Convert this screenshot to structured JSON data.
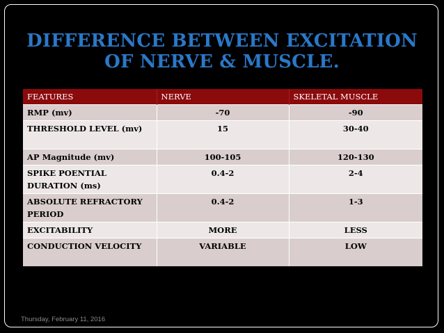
{
  "slide": {
    "title_line1": "DIFFERENCE BETWEEN EXCITATION",
    "title_line2": "OF NERVE & MUSCLE.",
    "date": "Thursday, February 11, 2016"
  },
  "table": {
    "headers": [
      "FEATURES",
      "NERVE",
      "SKELETAL MUSCLE"
    ],
    "rows": [
      [
        "RMP (mv)",
        "-70",
        "-90"
      ],
      [
        "THRESHOLD LEVEL (mv)",
        "15",
        "30-40"
      ],
      [
        "AP Magnitude (mv)",
        "100-105",
        "120-130"
      ],
      [
        "SPIKE POENTIAL DURATION (ms)",
        "0.4-2",
        "2-4"
      ],
      [
        "ABSOLUTE REFRACTORY PERIOD",
        "0.4-2",
        "1-3"
      ],
      [
        "EXCITABILITY",
        "MORE",
        "LESS"
      ],
      [
        "CONDUCTION VELOCITY",
        "VARIABLE",
        "LOW"
      ]
    ]
  },
  "colors": {
    "title": "#2a78c8",
    "header_bg": "#8b0a0c",
    "row_odd": "#d9cecd",
    "row_even": "#ede8e7",
    "background": "#000000"
  }
}
